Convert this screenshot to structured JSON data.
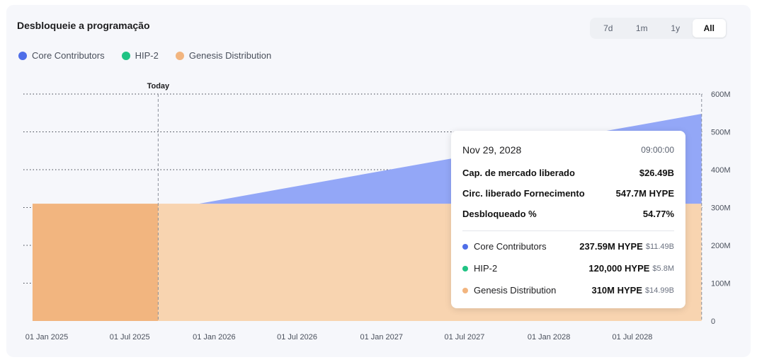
{
  "header": {
    "title": "Desbloqueie a programação"
  },
  "range_selector": {
    "options": [
      "7d",
      "1m",
      "1y",
      "All"
    ],
    "active": "All"
  },
  "colors": {
    "core": "#4f6ee8",
    "hip2": "#20c384",
    "genesis": "#f2b57f"
  },
  "chart_data": {
    "type": "area",
    "stacked": true,
    "today_label": "Today",
    "today_x": "2025-09-01",
    "x_ticks": [
      "01 Jan 2025",
      "01 Jul 2025",
      "01 Jan 2026",
      "01 Jul 2026",
      "01 Jan 2027",
      "01 Jul 2027",
      "01 Jan 2028",
      "01 Jul 2028"
    ],
    "y_ticks": [
      "0",
      "100M",
      "200M",
      "300M",
      "400M",
      "500M",
      "600M"
    ],
    "ylim": [
      0,
      600000000
    ],
    "legend_position": "top-left",
    "series": [
      {
        "name": "Genesis Distribution",
        "points": [
          [
            "2024-12-01",
            310000000
          ],
          [
            "2028-11-29",
            310000000
          ]
        ]
      },
      {
        "name": "HIP-2",
        "points": [
          [
            "2024-12-01",
            120000
          ],
          [
            "2028-11-29",
            120000
          ]
        ]
      },
      {
        "name": "Core Contributors",
        "points": [
          [
            "2024-12-01",
            0
          ],
          [
            "2025-11-29",
            0
          ],
          [
            "2028-11-29",
            237590000
          ]
        ]
      }
    ]
  },
  "tooltip": {
    "date": "Nov 29, 2028",
    "time": "09:00:00",
    "rows": [
      {
        "label": "Cap. de mercado liberado",
        "value": "$26.49B"
      },
      {
        "label": "Circ. liberado Fornecimento",
        "value": "547.7M HYPE"
      },
      {
        "label": "Desbloqueado %",
        "value": "54.77%"
      }
    ],
    "series": [
      {
        "name": "Core Contributors",
        "amount": "237.59M HYPE",
        "usd": "$11.49B"
      },
      {
        "name": "HIP-2",
        "amount": "120,000 HYPE",
        "usd": "$5.8M"
      },
      {
        "name": "Genesis Distribution",
        "amount": "310M HYPE",
        "usd": "$14.99B"
      }
    ]
  }
}
